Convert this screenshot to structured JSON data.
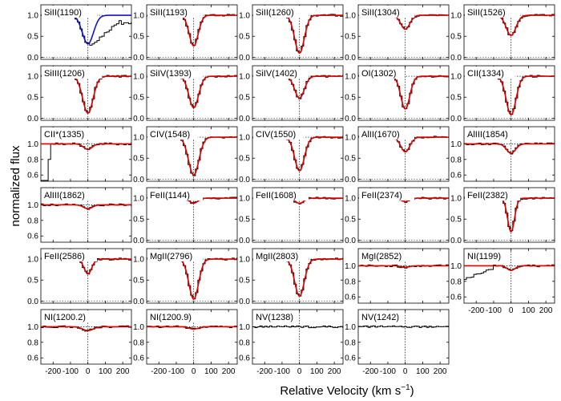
{
  "figure": {
    "xlabel": "Relative Velocity (km s",
    "xlabel_sup": "−1",
    "xlabel_close": ")",
    "ylabel": "normalized flux"
  },
  "colors": {
    "data": "#000000",
    "fit": "#dd0000",
    "fit_alt": "#1414cc",
    "guide": "#000000"
  },
  "chart_data": {
    "type": "line",
    "description_of_series": [
      "data (black step histogram)",
      "model fit (smooth curve)"
    ],
    "x_ticks": [
      -200,
      -100,
      0,
      100,
      200
    ],
    "x_tick_labels": [
      "-200",
      "-100",
      "0",
      "100",
      "200"
    ],
    "xlim": [
      -270,
      250
    ],
    "reference_lines": {
      "x": 0,
      "y": 1.0
    },
    "panels": [
      {
        "label": "SiII(1190)",
        "row": 0,
        "col": 0,
        "ylim": [
          -0.05,
          1.25
        ],
        "yticks": [
          0.0,
          0.5,
          1.0
        ],
        "ytick_labels": [
          "0.0",
          "0.5",
          "1.0"
        ],
        "fit_color": "blue",
        "depth": 0.68,
        "sigma": 32,
        "center": 0,
        "tail": true
      },
      {
        "label": "SiII(1193)",
        "row": 0,
        "col": 1,
        "ylim": [
          -0.05,
          1.25
        ],
        "yticks": [
          0.0,
          0.5,
          1.0
        ],
        "ytick_labels": [
          "0.0",
          "0.5",
          "1.0"
        ],
        "depth": 0.73,
        "sigma": 26,
        "center": 0
      },
      {
        "label": "SiII(1260)",
        "row": 0,
        "col": 2,
        "ylim": [
          -0.05,
          1.25
        ],
        "yticks": [
          0.0,
          0.5,
          1.0
        ],
        "ytick_labels": [
          "0.0",
          "0.5",
          "1.0"
        ],
        "depth": 0.9,
        "sigma": 28,
        "center": 0
      },
      {
        "label": "SiII(1304)",
        "row": 0,
        "col": 3,
        "ylim": [
          -0.05,
          1.25
        ],
        "yticks": [
          0.0,
          0.5,
          1.0
        ],
        "ytick_labels": [
          "0.0",
          "0.5",
          "1.0"
        ],
        "depth": 0.33,
        "sigma": 26,
        "center": 0
      },
      {
        "label": "SiII(1526)",
        "row": 0,
        "col": 4,
        "ylim": [
          -0.05,
          1.25
        ],
        "yticks": [
          0.0,
          0.5,
          1.0
        ],
        "ytick_labels": [
          "0.0",
          "0.5",
          "1.0"
        ],
        "depth": 0.48,
        "sigma": 28,
        "center": 0
      },
      {
        "label": "SiIII(1206)",
        "row": 1,
        "col": 0,
        "ylim": [
          -0.05,
          1.25
        ],
        "yticks": [
          0.0,
          0.5,
          1.0
        ],
        "ytick_labels": [
          "0.0",
          "0.5",
          "1.0"
        ],
        "depth": 0.88,
        "sigma": 30,
        "center": 0
      },
      {
        "label": "SiIV(1393)",
        "row": 1,
        "col": 1,
        "ylim": [
          -0.05,
          1.25
        ],
        "yticks": [
          0.0,
          0.5,
          1.0
        ],
        "ytick_labels": [
          "0.0",
          "0.5",
          "1.0"
        ],
        "depth": 0.75,
        "sigma": 28,
        "center": 0
      },
      {
        "label": "SiIV(1402)",
        "row": 1,
        "col": 2,
        "ylim": [
          -0.05,
          1.25
        ],
        "yticks": [
          0.0,
          0.5,
          1.0
        ],
        "ytick_labels": [
          "0.0",
          "0.5",
          "1.0"
        ],
        "depth": 0.52,
        "sigma": 28,
        "center": 0
      },
      {
        "label": "OI(1302)",
        "row": 1,
        "col": 3,
        "ylim": [
          -0.05,
          1.25
        ],
        "yticks": [
          0.0,
          0.5,
          1.0
        ],
        "ytick_labels": [
          "0.0",
          "0.5",
          "1.0"
        ],
        "depth": 0.78,
        "sigma": 26,
        "center": 0
      },
      {
        "label": "CII(1334)",
        "row": 1,
        "col": 4,
        "ylim": [
          -0.05,
          1.25
        ],
        "yticks": [
          0.0,
          0.5,
          1.0
        ],
        "ytick_labels": [
          "0.0",
          "0.5",
          "1.0"
        ],
        "depth": 0.92,
        "sigma": 28,
        "center": 0
      },
      {
        "label": "CII*(1335)",
        "row": 2,
        "col": 0,
        "ylim": [
          0.52,
          1.22
        ],
        "yticks": [
          0.6,
          0.8,
          1.0
        ],
        "ytick_labels": [
          "0.6",
          "0.8",
          "1.0"
        ],
        "depth": 0.07,
        "sigma": 25,
        "center": 0,
        "dropout": true
      },
      {
        "label": "CIV(1548)",
        "row": 2,
        "col": 1,
        "ylim": [
          -0.05,
          1.25
        ],
        "yticks": [
          0.0,
          0.5,
          1.0
        ],
        "ytick_labels": [
          "0.0",
          "0.5",
          "1.0"
        ],
        "depth": 0.9,
        "sigma": 30,
        "center": 0
      },
      {
        "label": "CIV(1550)",
        "row": 2,
        "col": 2,
        "ylim": [
          -0.05,
          1.25
        ],
        "yticks": [
          0.0,
          0.5,
          1.0
        ],
        "ytick_labels": [
          "0.0",
          "0.5",
          "1.0"
        ],
        "depth": 0.8,
        "sigma": 28,
        "center": 0
      },
      {
        "label": "AlII(1670)",
        "row": 2,
        "col": 3,
        "ylim": [
          -0.05,
          1.25
        ],
        "yticks": [
          0.0,
          0.5,
          1.0
        ],
        "ytick_labels": [
          "0.0",
          "0.5",
          "1.0"
        ],
        "depth": 0.35,
        "sigma": 26,
        "center": 0
      },
      {
        "label": "AlIII(1854)",
        "row": 2,
        "col": 4,
        "ylim": [
          0.52,
          1.22
        ],
        "yticks": [
          0.6,
          0.8,
          1.0
        ],
        "ytick_labels": [
          "0.6",
          "0.8",
          "1.0"
        ],
        "depth": 0.12,
        "sigma": 26,
        "center": 0
      },
      {
        "label": "AlIII(1862)",
        "row": 3,
        "col": 0,
        "ylim": [
          0.52,
          1.22
        ],
        "yticks": [
          0.6,
          0.8,
          1.0
        ],
        "ytick_labels": [
          "0.6",
          "0.8",
          "1.0"
        ],
        "depth": 0.05,
        "sigma": 26,
        "center": 0
      },
      {
        "label": "FeII(1144)",
        "row": 3,
        "col": 1,
        "ylim": [
          -0.05,
          1.25
        ],
        "yticks": [
          0.0,
          0.5,
          1.0
        ],
        "ytick_labels": [
          "0.0",
          "0.5",
          "1.0"
        ],
        "depth": 0.12,
        "sigma": 24,
        "center": 0
      },
      {
        "label": "FeII(1608)",
        "row": 3,
        "col": 2,
        "ylim": [
          -0.05,
          1.25
        ],
        "yticks": [
          0.0,
          0.5,
          1.0
        ],
        "ytick_labels": [
          "0.0",
          "0.5",
          "1.0"
        ],
        "depth": 0.12,
        "sigma": 25,
        "center": 0
      },
      {
        "label": "FeII(2374)",
        "row": 3,
        "col": 3,
        "ylim": [
          -0.05,
          1.25
        ],
        "yticks": [
          0.0,
          0.5,
          1.0
        ],
        "ytick_labels": [
          "0.0",
          "0.5",
          "1.0"
        ],
        "depth": 0.08,
        "sigma": 24,
        "center": 0
      },
      {
        "label": "FeII(2382)",
        "row": 3,
        "col": 4,
        "ylim": [
          -0.05,
          1.25
        ],
        "yticks": [
          0.0,
          0.5,
          1.0
        ],
        "ytick_labels": [
          "0.0",
          "0.5",
          "1.0"
        ],
        "depth": 0.8,
        "sigma": 20,
        "center": 0
      },
      {
        "label": "FeII(2586)",
        "row": 4,
        "col": 0,
        "ylim": [
          -0.05,
          1.25
        ],
        "yticks": [
          0.0,
          0.5,
          1.0
        ],
        "ytick_labels": [
          "0.0",
          "0.5",
          "1.0"
        ],
        "depth": 0.35,
        "sigma": 22,
        "center": 0
      },
      {
        "label": "MgII(2796)",
        "row": 4,
        "col": 1,
        "ylim": [
          -0.05,
          1.25
        ],
        "yticks": [
          0.0,
          0.5,
          1.0
        ],
        "ytick_labels": [
          "0.0",
          "0.5",
          "1.0"
        ],
        "depth": 0.95,
        "sigma": 28,
        "center": 0
      },
      {
        "label": "MgII(2803)",
        "row": 4,
        "col": 2,
        "ylim": [
          -0.05,
          1.25
        ],
        "yticks": [
          0.0,
          0.5,
          1.0
        ],
        "ytick_labels": [
          "0.0",
          "0.5",
          "1.0"
        ],
        "depth": 0.88,
        "sigma": 28,
        "center": 0
      },
      {
        "label": "MgI(2852)",
        "row": 4,
        "col": 3,
        "ylim": [
          0.52,
          1.22
        ],
        "yticks": [
          0.6,
          0.8,
          1.0
        ],
        "ytick_labels": [
          "0.6",
          "0.8",
          "1.0"
        ],
        "depth": 0.02,
        "sigma": 24,
        "center": 0
      },
      {
        "label": "NI(1199)",
        "row": 4,
        "col": 4,
        "ylim": [
          0.52,
          1.22
        ],
        "yticks": [
          0.6,
          0.8,
          1.0
        ],
        "ytick_labels": [
          "0.6",
          "0.8",
          "1.0"
        ],
        "depth": 0.06,
        "sigma": 22,
        "center": 0,
        "ramp": true
      },
      {
        "label": "NI(1200.2)",
        "row": 5,
        "col": 0,
        "ylim": [
          0.52,
          1.22
        ],
        "yticks": [
          0.6,
          0.8,
          1.0
        ],
        "ytick_labels": [
          "0.6",
          "0.8",
          "1.0"
        ],
        "depth": 0.05,
        "sigma": 30,
        "center": 0
      },
      {
        "label": "NI(1200.9)",
        "row": 5,
        "col": 1,
        "ylim": [
          0.52,
          1.22
        ],
        "yticks": [
          0.6,
          0.8,
          1.0
        ],
        "ytick_labels": [
          "0.6",
          "0.8",
          "1.0"
        ],
        "depth": 0.03,
        "sigma": 28,
        "center": 0
      },
      {
        "label": "NV(1238)",
        "row": 5,
        "col": 2,
        "ylim": [
          0.52,
          1.22
        ],
        "yticks": [
          0.6,
          0.8,
          1.0
        ],
        "ytick_labels": [
          "0.6",
          "0.8",
          "1.0"
        ],
        "depth": 0,
        "sigma": 20,
        "center": 0,
        "nofit": true
      },
      {
        "label": "NV(1242)",
        "row": 5,
        "col": 3,
        "ylim": [
          0.52,
          1.22
        ],
        "yticks": [
          0.6,
          0.8,
          1.0
        ],
        "ytick_labels": [
          "0.6",
          "0.8",
          "1.0"
        ],
        "depth": 0,
        "sigma": 20,
        "center": 0,
        "nofit": true
      }
    ]
  }
}
